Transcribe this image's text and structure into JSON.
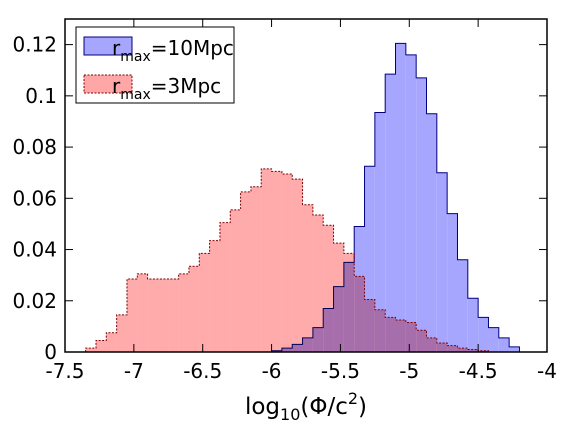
{
  "chart_data": {
    "type": "histogram",
    "xlabel": {
      "base": "log",
      "sub": "10",
      "main": "(Φ/c",
      "sup": "2",
      "close": ")"
    },
    "xlim": [
      -7.5,
      -4.0
    ],
    "ylim": [
      0,
      0.13
    ],
    "x_ticks": [
      -7.5,
      -7,
      -6.5,
      -6,
      -5.5,
      -5,
      -4.5,
      -4
    ],
    "x_tick_labels": [
      "-7.5",
      "-7",
      "-6.5",
      "-6",
      "-5.5",
      "-5",
      "-4.5",
      "-4"
    ],
    "y_ticks": [
      0,
      0.02,
      0.04,
      0.06,
      0.08,
      0.1,
      0.12
    ],
    "y_tick_labels": [
      "0",
      "0.02",
      "0.04",
      "0.06",
      "0.08",
      "0.1",
      "0.12"
    ],
    "grid": false,
    "legend_position": "top-left",
    "bin_edges": [
      -7.35,
      -7.275,
      -7.2,
      -7.125,
      -7.05,
      -6.975,
      -6.9,
      -6.825,
      -6.75,
      -6.675,
      -6.6,
      -6.525,
      -6.45,
      -6.375,
      -6.3,
      -6.225,
      -6.15,
      -6.075,
      -6.0,
      -5.925,
      -5.85,
      -5.775,
      -5.7,
      -5.625,
      -5.55,
      -5.475,
      -5.4,
      -5.325,
      -5.25,
      -5.175,
      -5.1,
      -5.025,
      -4.95,
      -4.875,
      -4.8,
      -4.725,
      -4.65,
      -4.575,
      -4.5,
      -4.425,
      -4.35,
      -4.275,
      -4.2
    ],
    "series": [
      {
        "name": "r_max=10Mpc",
        "legend": {
          "base": "r",
          "sub": "max",
          "rest": "=10Mpc"
        },
        "color": "#a6a6ff",
        "edge_color": "#000080",
        "values": [
          0,
          0,
          0,
          0,
          0,
          0,
          0,
          0,
          0,
          0,
          0,
          0,
          0,
          0,
          0,
          0,
          0,
          0,
          0.0005,
          0.0015,
          0.003,
          0.0055,
          0.0095,
          0.017,
          0.0255,
          0.035,
          0.049,
          0.0725,
          0.0935,
          0.1085,
          0.1205,
          0.116,
          0.107,
          0.093,
          0.07,
          0.054,
          0.036,
          0.021,
          0.0135,
          0.0095,
          0.0055,
          0.002
        ]
      },
      {
        "name": "r_max=3Mpc",
        "legend": {
          "base": "r",
          "sub": "max",
          "rest": "=3Mpc"
        },
        "color": "#ffa6a6",
        "edge_color": "#800000",
        "values": [
          0.0015,
          0.0045,
          0.0075,
          0.0145,
          0.0285,
          0.0305,
          0.0285,
          0.0285,
          0.0285,
          0.0305,
          0.0335,
          0.0385,
          0.0435,
          0.0505,
          0.0555,
          0.0625,
          0.0645,
          0.0715,
          0.0705,
          0.0695,
          0.0675,
          0.0575,
          0.0535,
          0.0495,
          0.0425,
          0.0385,
          0.0295,
          0.0205,
          0.0165,
          0.0135,
          0.0125,
          0.0115,
          0.0085,
          0.0055,
          0.0035,
          0.0025,
          0.0015,
          0.001,
          0.0005,
          0,
          0,
          0
        ]
      }
    ]
  }
}
